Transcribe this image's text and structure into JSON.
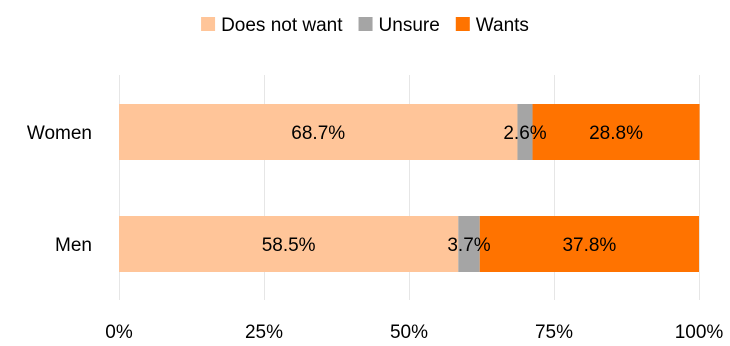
{
  "chart_data": {
    "type": "bar",
    "orientation": "horizontal",
    "stacked": true,
    "percent_stacked": true,
    "title": "",
    "xlabel": "",
    "ylabel": "",
    "xlim": [
      0,
      100
    ],
    "grid": true,
    "legend_position": "top",
    "categories": [
      "Women",
      "Men"
    ],
    "series": [
      {
        "name": "Does not want",
        "color": "#ffc599",
        "values": [
          68.7,
          58.5
        ],
        "labels": [
          "68.7%",
          "58.5%"
        ]
      },
      {
        "name": "Unsure",
        "color": "#a5a5a5",
        "values": [
          2.6,
          3.7
        ],
        "labels": [
          "2.6%",
          "3.7%"
        ]
      },
      {
        "name": "Wants",
        "color": "#ff7300",
        "values": [
          28.8,
          37.8
        ],
        "labels": [
          "28.8%",
          "37.8%"
        ]
      }
    ],
    "x_ticks": [
      0,
      25,
      50,
      75,
      100
    ],
    "x_tick_labels": [
      "0%",
      "25%",
      "50%",
      "75%",
      "100%"
    ]
  }
}
